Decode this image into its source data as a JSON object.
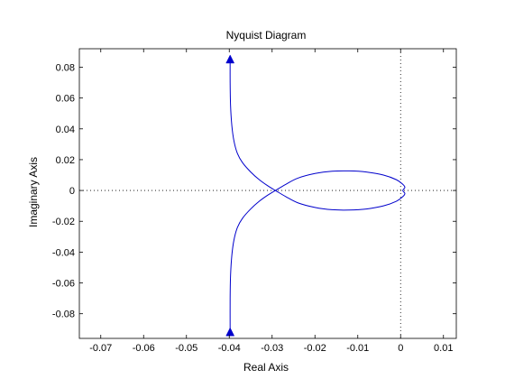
{
  "chart_data": {
    "type": "line",
    "title": "Nyquist Diagram",
    "xlabel": "Real Axis",
    "ylabel": "Imaginary Axis",
    "xlim": [
      -0.075,
      0.013
    ],
    "ylim": [
      -0.096,
      0.092
    ],
    "xticks": [
      -0.07,
      -0.06,
      -0.05,
      -0.04,
      -0.03,
      -0.02,
      -0.01,
      0,
      0.01
    ],
    "xtick_labels": [
      "-0.07",
      "-0.06",
      "-0.05",
      "-0.04",
      "-0.03",
      "-0.02",
      "-0.01",
      "0",
      "0.01"
    ],
    "yticks": [
      -0.08,
      -0.06,
      -0.04,
      -0.02,
      0,
      0.02,
      0.04,
      0.06,
      0.08
    ],
    "ytick_labels": [
      "-0.08",
      "-0.06",
      "-0.04",
      "-0.02",
      "0",
      "0.02",
      "0.04",
      "0.06",
      "0.08"
    ],
    "grid": false,
    "reference_lines": {
      "real_axis_y": 0,
      "imag_axis_x": 0,
      "style": "dotted"
    },
    "series": [
      {
        "color": "#0000cc",
        "points": [
          [
            -0.0398,
            0.085
          ],
          [
            -0.0398,
            0.07
          ],
          [
            -0.0397,
            0.055
          ],
          [
            -0.0394,
            0.042
          ],
          [
            -0.0389,
            0.032
          ],
          [
            -0.0381,
            0.024
          ],
          [
            -0.0369,
            0.018
          ],
          [
            -0.035,
            0.012
          ],
          [
            -0.033,
            0.007
          ],
          [
            -0.031,
            0.003
          ],
          [
            -0.029,
            -0.0004
          ],
          [
            -0.0268,
            -0.004
          ],
          [
            -0.024,
            -0.008
          ],
          [
            -0.02,
            -0.011
          ],
          [
            -0.016,
            -0.0125
          ],
          [
            -0.012,
            -0.0127
          ],
          [
            -0.008,
            -0.012
          ],
          [
            -0.004,
            -0.01
          ],
          [
            -0.001,
            -0.007
          ],
          [
            0.0005,
            -0.004
          ],
          [
            0.001,
            -0.002
          ],
          [
            0.0005,
            0.0
          ],
          [
            0.001,
            0.002
          ],
          [
            0.0005,
            0.004
          ],
          [
            -0.001,
            0.007
          ],
          [
            -0.004,
            0.01
          ],
          [
            -0.008,
            0.012
          ],
          [
            -0.012,
            0.0127
          ],
          [
            -0.016,
            0.0125
          ],
          [
            -0.02,
            0.011
          ],
          [
            -0.024,
            0.008
          ],
          [
            -0.0268,
            0.004
          ],
          [
            -0.029,
            0.0004
          ],
          [
            -0.031,
            -0.003
          ],
          [
            -0.033,
            -0.007
          ],
          [
            -0.035,
            -0.012
          ],
          [
            -0.0369,
            -0.018
          ],
          [
            -0.0381,
            -0.024
          ],
          [
            -0.0389,
            -0.032
          ],
          [
            -0.0394,
            -0.042
          ],
          [
            -0.0397,
            -0.055
          ],
          [
            -0.0398,
            -0.07
          ],
          [
            -0.0398,
            -0.092
          ]
        ],
        "arrows": [
          {
            "at": [
              -0.0398,
              0.085
            ],
            "direction": "up"
          },
          {
            "at": [
              -0.0398,
              -0.092
            ],
            "direction": "up"
          }
        ]
      }
    ]
  }
}
